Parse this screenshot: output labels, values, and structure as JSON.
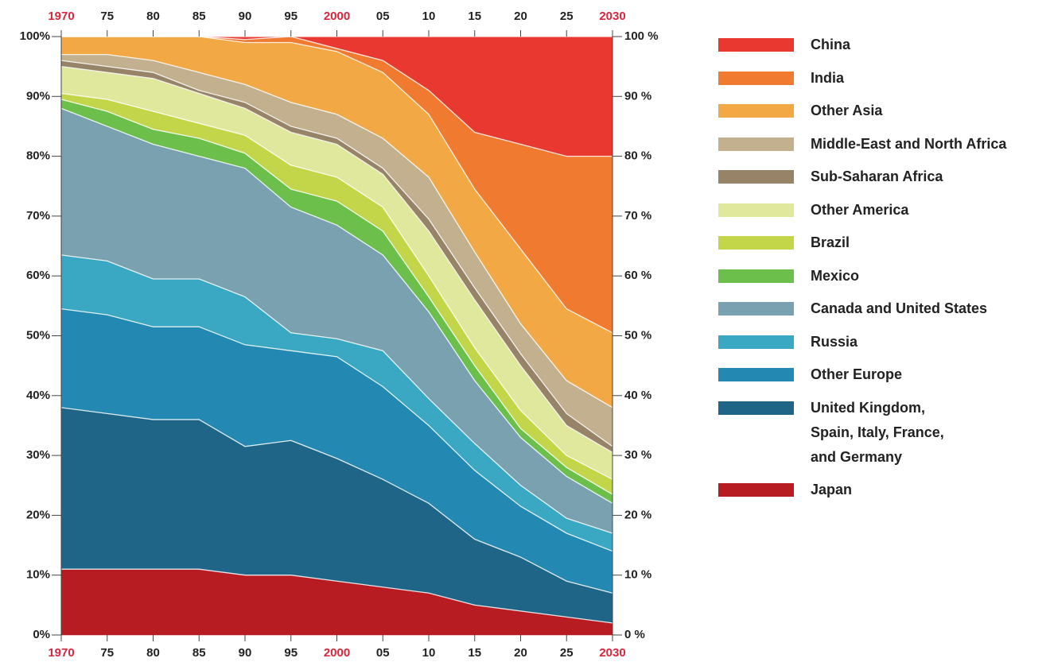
{
  "chart_data": {
    "type": "stacked_area",
    "x": [
      1970,
      1975,
      1980,
      1985,
      1990,
      1995,
      2000,
      2005,
      2010,
      2015,
      2020,
      2025,
      2030
    ],
    "xlim": [
      1970,
      2030
    ],
    "xticks": [
      {
        "value": 1970,
        "label": "1970",
        "color": "#d7263d"
      },
      {
        "value": 1975,
        "label": "75",
        "color": "#222222"
      },
      {
        "value": 1980,
        "label": "80",
        "color": "#222222"
      },
      {
        "value": 1985,
        "label": "85",
        "color": "#222222"
      },
      {
        "value": 1990,
        "label": "90",
        "color": "#222222"
      },
      {
        "value": 1995,
        "label": "95",
        "color": "#222222"
      },
      {
        "value": 2000,
        "label": "2000",
        "color": "#d7263d"
      },
      {
        "value": 2005,
        "label": "05",
        "color": "#222222"
      },
      {
        "value": 2010,
        "label": "10",
        "color": "#222222"
      },
      {
        "value": 2015,
        "label": "15",
        "color": "#222222"
      },
      {
        "value": 2020,
        "label": "20",
        "color": "#222222"
      },
      {
        "value": 2025,
        "label": "25",
        "color": "#222222"
      },
      {
        "value": 2030,
        "label": "2030",
        "color": "#d7263d"
      }
    ],
    "ylim": [
      0,
      100
    ],
    "yticks": [
      {
        "value": 0,
        "label": "0%"
      },
      {
        "value": 10,
        "label": "10%"
      },
      {
        "value": 20,
        "label": "20%"
      },
      {
        "value": 30,
        "label": "30%"
      },
      {
        "value": 40,
        "label": "40%"
      },
      {
        "value": 50,
        "label": "50%"
      },
      {
        "value": 60,
        "label": "60%"
      },
      {
        "value": 70,
        "label": "70%"
      },
      {
        "value": 80,
        "label": "80%"
      },
      {
        "value": 90,
        "label": "90%"
      },
      {
        "value": 100,
        "label": "100%"
      }
    ],
    "y2lim": [
      0,
      100
    ],
    "y2ticks": [
      {
        "value": 0,
        "label": "0 %"
      },
      {
        "value": 10,
        "label": "10 %"
      },
      {
        "value": 20,
        "label": "20 %"
      },
      {
        "value": 30,
        "label": "30 %"
      },
      {
        "value": 40,
        "label": "40 %"
      },
      {
        "value": 50,
        "label": "50 %"
      },
      {
        "value": 60,
        "label": "60 %"
      },
      {
        "value": 70,
        "label": "70 %"
      },
      {
        "value": 80,
        "label": "80 %"
      },
      {
        "value": 90,
        "label": "90 %"
      },
      {
        "value": 100,
        "label": "100 %"
      }
    ],
    "series": [
      {
        "name": "China",
        "color": "#e8382f",
        "values": [
          0,
          0,
          0,
          0,
          0.5,
          0,
          2,
          4,
          9,
          16,
          18,
          20,
          20
        ]
      },
      {
        "name": "India",
        "color": "#f07a30",
        "values": [
          0,
          0,
          0,
          0,
          0.5,
          1,
          0.5,
          2,
          4,
          9.5,
          17.5,
          25.5,
          29.5
        ]
      },
      {
        "name": "Other Asia",
        "color": "#f2a945",
        "values": [
          3,
          3,
          4,
          6,
          7,
          10,
          10.5,
          11,
          10.5,
          10.5,
          12.5,
          12,
          12.5
        ]
      },
      {
        "name": "Middle-East and North Africa",
        "color": "#c2b08e",
        "values": [
          1,
          2,
          2,
          3,
          3,
          4,
          4,
          5,
          7,
          6,
          5,
          5.5,
          6.5
        ]
      },
      {
        "name": "Sub-Saharan Africa",
        "color": "#978468",
        "values": [
          1,
          1,
          1,
          0.5,
          1,
          1,
          1,
          1,
          2,
          2,
          2,
          2,
          1
        ]
      },
      {
        "name": "Other America",
        "color": "#dfe89c",
        "values": [
          4.5,
          4.5,
          5.5,
          5,
          4.5,
          5.5,
          5.5,
          5.5,
          7.5,
          8,
          7.5,
          5,
          4.5
        ]
      },
      {
        "name": "Brazil",
        "color": "#c3d64a",
        "values": [
          1,
          2,
          3,
          2.5,
          3,
          4,
          4,
          4,
          3.5,
          3,
          3,
          2,
          2.5
        ]
      },
      {
        "name": "Mexico",
        "color": "#6cbf4b",
        "values": [
          1.5,
          2.5,
          2.5,
          3,
          2.5,
          3,
          4,
          4,
          2.5,
          2.5,
          1.5,
          1.5,
          1.5
        ]
      },
      {
        "name": "Canada and United States",
        "color": "#7aa1b0",
        "values": [
          24.5,
          22.5,
          22.5,
          20.5,
          21.5,
          21,
          19,
          16,
          14.5,
          10.5,
          8,
          7,
          5
        ]
      },
      {
        "name": "Russia",
        "color": "#3aa8c2",
        "values": [
          9,
          9,
          8,
          8,
          8,
          3,
          3,
          6,
          4.5,
          4.5,
          3.5,
          2.5,
          3
        ]
      },
      {
        "name": "Other Europe",
        "color": "#2389b3",
        "values": [
          16.5,
          16.5,
          15.5,
          15.5,
          17,
          15,
          17,
          15.5,
          13,
          11.5,
          8.5,
          8,
          7
        ]
      },
      {
        "name": "United Kingdom,\nSpain, Italy, France,\nand Germany",
        "color": "#1f6587",
        "values": [
          27,
          26,
          25,
          25,
          21.5,
          22.5,
          20.5,
          18,
          15,
          11,
          9,
          6,
          5
        ]
      },
      {
        "name": "Japan",
        "color": "#b71c22",
        "values": [
          11,
          11,
          11,
          11,
          10,
          10,
          9,
          8,
          7,
          5,
          4,
          3,
          2
        ]
      }
    ]
  }
}
